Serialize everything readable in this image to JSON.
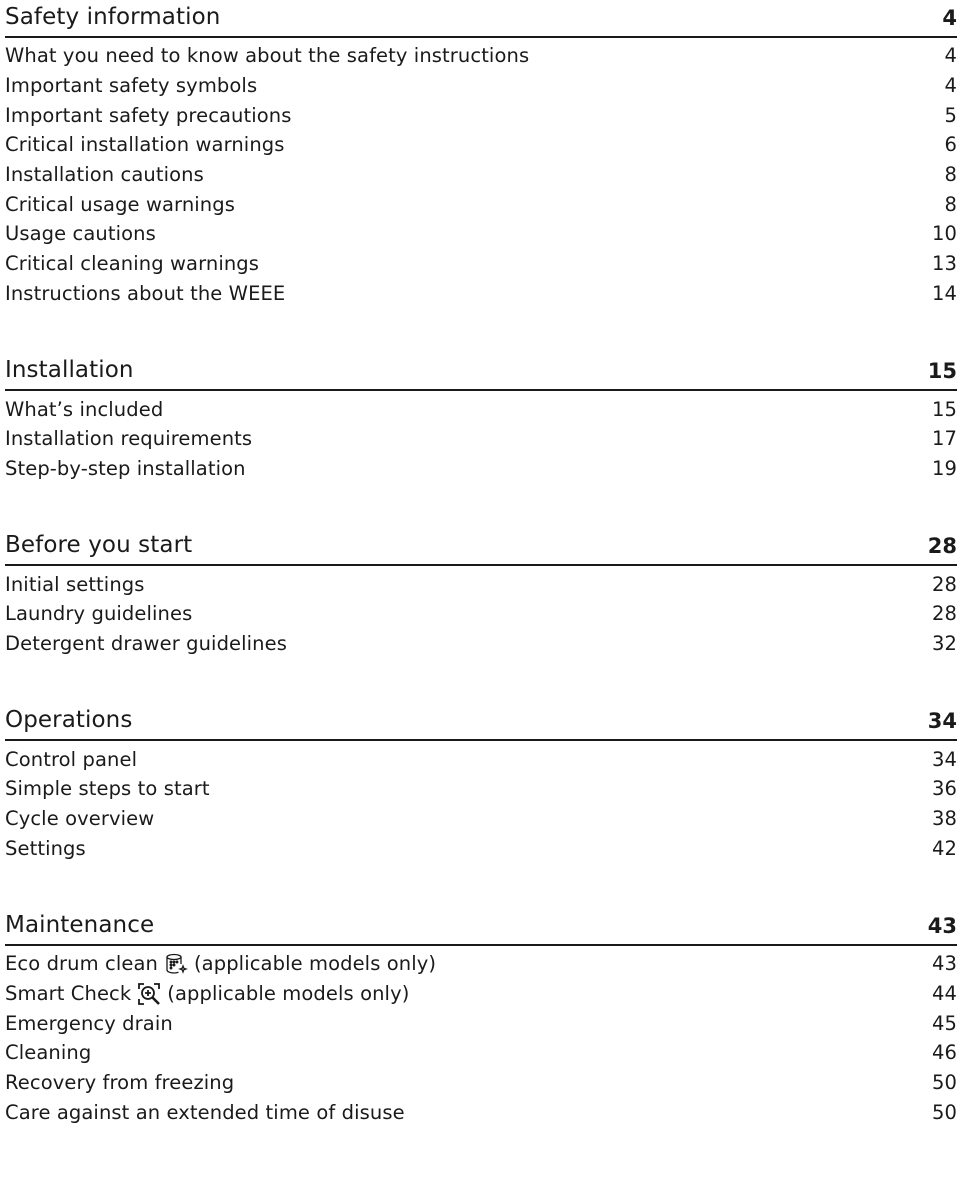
{
  "sections": [
    {
      "title": "Safety information",
      "page": "4",
      "entries": [
        {
          "label": "What you need to know about the safety instructions",
          "page": "4"
        },
        {
          "label": "Important safety symbols",
          "page": "4"
        },
        {
          "label": "Important safety precautions",
          "page": "5"
        },
        {
          "label": "Critical installation warnings",
          "page": "6"
        },
        {
          "label": "Installation cautions",
          "page": "8"
        },
        {
          "label": "Critical usage warnings",
          "page": "8"
        },
        {
          "label": "Usage cautions",
          "page": "10"
        },
        {
          "label": "Critical cleaning warnings",
          "page": "13"
        },
        {
          "label": "Instructions about the WEEE",
          "page": "14"
        }
      ]
    },
    {
      "title": "Installation",
      "page": "15",
      "entries": [
        {
          "label": "What’s included",
          "page": "15"
        },
        {
          "label": "Installation requirements",
          "page": "17"
        },
        {
          "label": "Step-by-step installation",
          "page": "19"
        }
      ]
    },
    {
      "title": "Before you start",
      "page": "28",
      "entries": [
        {
          "label": "Initial settings",
          "page": "28"
        },
        {
          "label": "Laundry guidelines",
          "page": "28"
        },
        {
          "label": "Detergent drawer guidelines",
          "page": "32"
        }
      ]
    },
    {
      "title": "Operations",
      "page": "34",
      "entries": [
        {
          "label": "Control panel",
          "page": "34"
        },
        {
          "label": "Simple steps to start",
          "page": "36"
        },
        {
          "label": "Cycle overview",
          "page": "38"
        },
        {
          "label": "Settings",
          "page": "42"
        }
      ]
    },
    {
      "title": "Maintenance",
      "page": "43",
      "entries": [
        {
          "label": "Eco drum clean",
          "suffix": "(applicable models only)",
          "icon": "eco-drum-clean-icon",
          "page": "43"
        },
        {
          "label": "Smart Check",
          "suffix": "(applicable models only)",
          "icon": "smart-check-icon",
          "page": "44"
        },
        {
          "label": "Emergency drain",
          "page": "45"
        },
        {
          "label": "Cleaning",
          "page": "46"
        },
        {
          "label": "Recovery from freezing",
          "page": "50"
        },
        {
          "label": "Care against an extended time of disuse",
          "page": "50"
        }
      ]
    }
  ]
}
